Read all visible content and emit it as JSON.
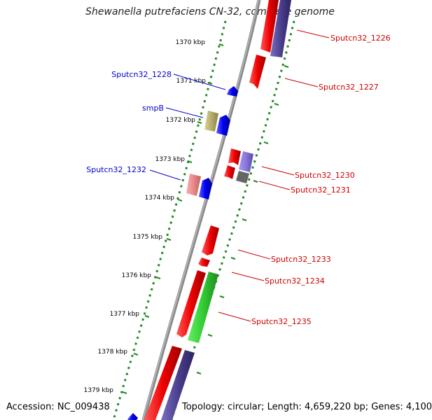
{
  "title": "Shewanella putrefaciens CN-32, complete genome",
  "footer": {
    "accession": "Accession: NC_009438",
    "summary": "Topology: circular; Length: 4,659,220 bp; Genes: 4,100"
  },
  "ticks": [
    "1370 kbp",
    "1371 kbp",
    "1372 kbp",
    "1373 kbp",
    "1374 kbp",
    "1375 kbp",
    "1376 kbp",
    "1377 kbp",
    "1378 kbp",
    "1379 kbp"
  ],
  "genes_left": [
    "Sputcn32_1228",
    "smpB",
    "Sputcn32_1232"
  ],
  "genes_right": [
    "Sputcn32_1226",
    "Sputcn32_1227",
    "Sputcn32_1230",
    "Sputcn32_1231",
    "Sputcn32_1233",
    "Sputcn32_1234",
    "Sputcn32_1235"
  ],
  "colors": {
    "forward_label": "#0000cc",
    "reverse_label": "#cc0000",
    "red_feature": "#ee0000",
    "blue_feature": "#0000ee",
    "purple_feature": "#4b3f8f",
    "green_feature": "#33cc33",
    "olive_feature": "#b5ad6a",
    "gc_dots": "#228822",
    "backbone": "#888888"
  }
}
